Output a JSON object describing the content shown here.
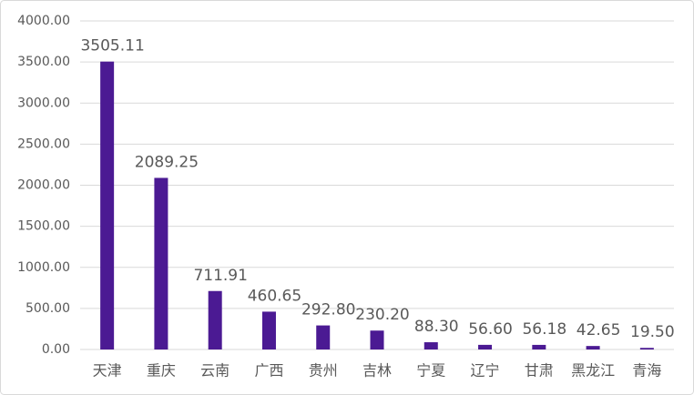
{
  "chart_data": {
    "type": "bar",
    "categories": [
      "天津",
      "重庆",
      "云南",
      "广西",
      "贵州",
      "吉林",
      "宁夏",
      "辽宁",
      "甘肃",
      "黑龙江",
      "青海"
    ],
    "values": [
      3505.11,
      2089.25,
      711.91,
      460.65,
      292.8,
      230.2,
      88.3,
      56.6,
      56.18,
      42.65,
      19.5
    ],
    "value_labels": [
      "3505.11",
      "2089.25",
      "711.91",
      "460.65",
      "292.80",
      "230.20",
      "88.30",
      "56.60",
      "56.18",
      "42.65",
      "19.50"
    ],
    "color": "#4b1a93",
    "ylim": [
      0,
      4000
    ],
    "yticks": [
      {
        "value": 0,
        "label": "0.00"
      },
      {
        "value": 500,
        "label": "500.00"
      },
      {
        "value": 1000,
        "label": "1000.00"
      },
      {
        "value": 1500,
        "label": "1500.00"
      },
      {
        "value": 2000,
        "label": "2000.00"
      },
      {
        "value": 2500,
        "label": "2500.00"
      },
      {
        "value": 3000,
        "label": "3000.00"
      },
      {
        "value": 3500,
        "label": "3500.00"
      },
      {
        "value": 4000,
        "label": "4000.00"
      }
    ],
    "grid": true
  }
}
